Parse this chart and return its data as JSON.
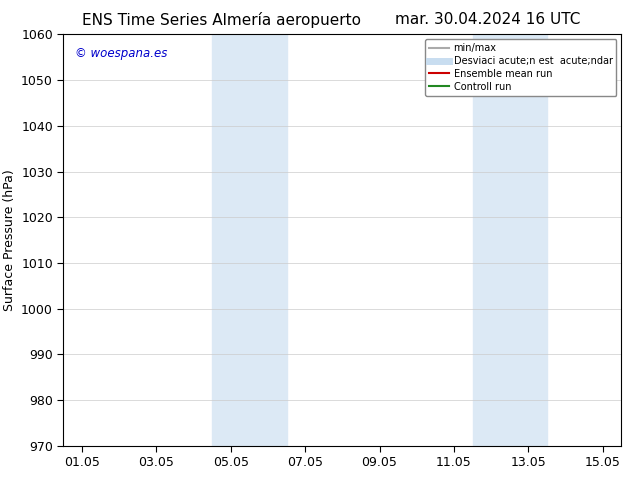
{
  "title_left": "ENS Time Series Almería aeropuerto",
  "title_right": "mar. 30.04.2024 16 UTC",
  "ylabel": "Surface Pressure (hPa)",
  "ylim": [
    970,
    1060
  ],
  "yticks": [
    970,
    980,
    990,
    1000,
    1010,
    1020,
    1030,
    1040,
    1050,
    1060
  ],
  "xtick_labels": [
    "01.05",
    "03.05",
    "05.05",
    "07.05",
    "09.05",
    "11.05",
    "13.05",
    "15.05"
  ],
  "xtick_positions": [
    0,
    2,
    4,
    6,
    8,
    10,
    12,
    14
  ],
  "xlim": [
    -0.5,
    14.5
  ],
  "background_color": "#ffffff",
  "plot_bg_color": "#ffffff",
  "shaded_regions": [
    {
      "xmin": 3.5,
      "xmax": 5.5,
      "color": "#dce9f5"
    },
    {
      "xmin": 10.5,
      "xmax": 12.5,
      "color": "#dce9f5"
    }
  ],
  "watermark_text": "© woespana.es",
  "watermark_color": "#0000cc",
  "legend_entries": [
    {
      "label": "min/max",
      "color": "#aaaaaa",
      "lw": 1.5,
      "type": "line"
    },
    {
      "label": "Desviaci acute;n est  acute;ndar",
      "color": "#c8ddf0",
      "lw": 5,
      "type": "line"
    },
    {
      "label": "Ensemble mean run",
      "color": "#cc0000",
      "lw": 1.5,
      "type": "line"
    },
    {
      "label": "Controll run",
      "color": "#228822",
      "lw": 1.5,
      "type": "line"
    }
  ],
  "tick_fontsize": 9,
  "title_fontsize": 11,
  "ylabel_fontsize": 9,
  "grid_color": "#cccccc",
  "spine_color": "#000000"
}
